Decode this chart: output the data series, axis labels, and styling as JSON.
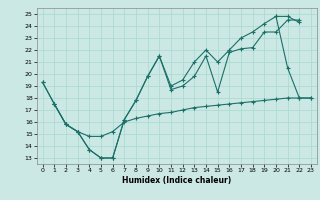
{
  "xlabel": "Humidex (Indice chaleur)",
  "background_color": "#cce8e4",
  "grid_color": "#a8d8d0",
  "line_color": "#1a7068",
  "xlim": [
    -0.5,
    23.5
  ],
  "ylim": [
    12.5,
    25.5
  ],
  "yticks": [
    13,
    14,
    15,
    16,
    17,
    18,
    19,
    20,
    21,
    22,
    23,
    24,
    25
  ],
  "xticks": [
    0,
    1,
    2,
    3,
    4,
    5,
    6,
    7,
    8,
    9,
    10,
    11,
    12,
    13,
    14,
    15,
    16,
    17,
    18,
    19,
    20,
    21,
    22,
    23
  ],
  "line1_x": [
    0,
    1,
    2,
    3,
    4,
    5,
    6,
    7,
    8,
    9,
    10,
    11,
    12,
    13,
    14,
    15,
    16,
    17,
    18,
    19,
    20,
    21,
    22
  ],
  "line1_y": [
    19.3,
    17.5,
    15.8,
    15.2,
    13.7,
    13.0,
    13.0,
    16.2,
    17.8,
    19.8,
    21.5,
    18.7,
    19.0,
    19.8,
    21.5,
    18.5,
    21.8,
    22.1,
    22.2,
    23.5,
    23.5,
    24.5,
    24.5
  ],
  "line2_x": [
    0,
    1,
    2,
    3,
    4,
    5,
    6,
    7,
    8,
    9,
    10,
    11,
    12,
    13,
    14,
    15,
    16,
    17,
    18,
    19,
    20,
    21,
    22
  ],
  "line2_y": [
    19.3,
    17.5,
    15.8,
    15.2,
    13.7,
    13.0,
    13.0,
    16.2,
    17.8,
    19.8,
    21.5,
    19.0,
    19.5,
    21.0,
    22.0,
    21.0,
    22.0,
    23.0,
    23.5,
    24.2,
    24.8,
    24.8,
    24.3
  ],
  "line3_x": [
    1,
    2,
    3,
    4,
    5,
    6,
    7,
    8,
    9,
    10,
    11,
    12,
    13,
    14,
    15,
    16,
    17,
    18,
    19,
    20,
    21,
    22,
    23
  ],
  "line3_y": [
    17.5,
    15.8,
    15.2,
    14.8,
    14.8,
    15.2,
    16.0,
    16.3,
    16.5,
    16.7,
    16.8,
    17.0,
    17.2,
    17.3,
    17.4,
    17.5,
    17.6,
    17.7,
    17.8,
    17.9,
    18.0,
    18.0,
    18.0
  ],
  "line4_x": [
    20,
    21,
    22,
    23
  ],
  "line4_y": [
    24.8,
    20.5,
    18.0,
    18.0
  ]
}
